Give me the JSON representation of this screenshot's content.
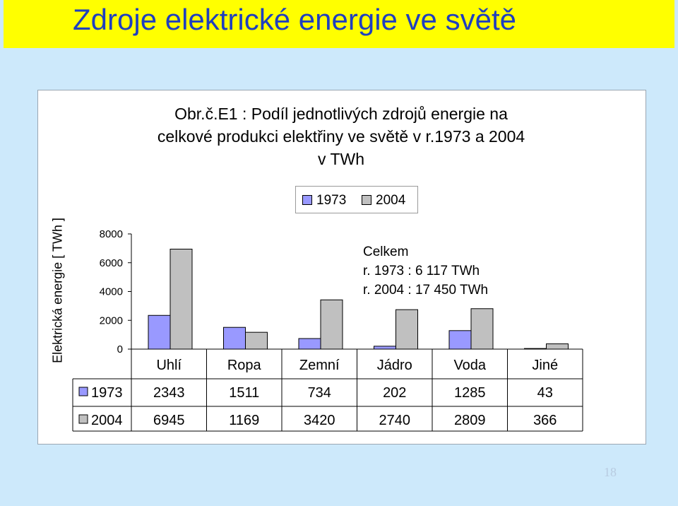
{
  "slide": {
    "title": "Zdroje elektrické energie ve světě",
    "page_number": "18"
  },
  "colors": {
    "background": "#cde9fb",
    "title_bar": "#ffff00",
    "title_text": "#1f3fbf",
    "series_1973": "#9999ff",
    "series_2004": "#c0c0c0"
  },
  "chart_data": {
    "type": "bar",
    "title_lines": [
      "Obr.č.E1 : Podíl jednotlivých zdrojů energie na",
      "celkové produkci elektřiny ve světě v r.1973 a 2004",
      "v TWh"
    ],
    "ylabel": "Elektrická energie [ TWh ]",
    "xlabel": "",
    "categories": [
      "Uhlí",
      "Ropa",
      "Zemní",
      "Jádro",
      "Voda",
      "Jiné"
    ],
    "series": [
      {
        "name": "1973",
        "values": [
          2343,
          1511,
          734,
          202,
          1285,
          43
        ]
      },
      {
        "name": "2004",
        "values": [
          6945,
          1169,
          3420,
          2740,
          2809,
          366
        ]
      }
    ],
    "yticks": [
      "0",
      "2000",
      "4000",
      "6000",
      "8000"
    ],
    "ylim": [
      0,
      8000
    ],
    "legend_position": "top-center",
    "data_table": true,
    "grid": false,
    "annotation": [
      "Celkem",
      "r. 1973 : 6 117 TWh",
      "r. 2004 : 17 450 TWh"
    ]
  }
}
